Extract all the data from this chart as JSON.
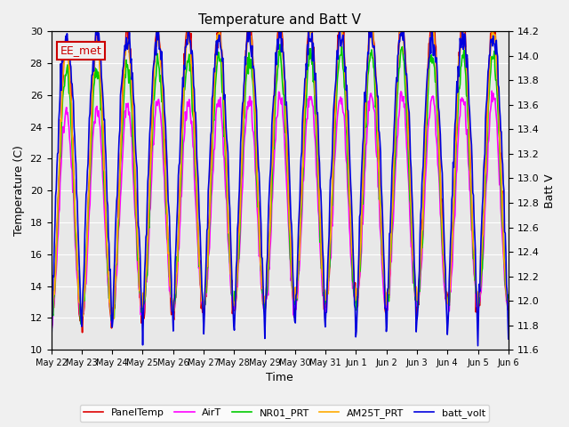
{
  "title": "Temperature and Batt V",
  "xlabel": "Time",
  "ylabel_left": "Temperature (C)",
  "ylabel_right": "Batt V",
  "ylim_left": [
    10,
    30
  ],
  "ylim_right": [
    11.6,
    14.2
  ],
  "annotation": "EE_met",
  "annotation_color": "#cc0000",
  "background_color": "#e8e8e8",
  "x_tick_labels": [
    "May 22",
    "May 23",
    "May 24",
    "May 25",
    "May 26",
    "May 27",
    "May 28",
    "May 29",
    "May 30",
    "May 31",
    "Jun 1",
    "Jun 2",
    "Jun 3",
    "Jun 4",
    "Jun 5",
    "Jun 6"
  ],
  "series_names": [
    "PanelTemp",
    "AirT",
    "NR01_PRT",
    "AM25T_PRT",
    "batt_volt"
  ],
  "series_colors": [
    "#dd0000",
    "#ff00ff",
    "#00cc00",
    "#ffaa00",
    "#0000dd"
  ],
  "series_lw": [
    1.2,
    1.2,
    1.2,
    1.2,
    1.2
  ],
  "n_days": 15,
  "pts_per_day": 48,
  "temp_min": 11.5,
  "temp_max": 29.5,
  "batt_min": 11.7,
  "batt_max": 14.15,
  "yticks_left": [
    10,
    12,
    14,
    16,
    18,
    20,
    22,
    24,
    26,
    28,
    30
  ],
  "yticks_right": [
    11.6,
    11.8,
    12.0,
    12.2,
    12.4,
    12.6,
    12.8,
    13.0,
    13.2,
    13.4,
    13.6,
    13.8,
    14.0,
    14.2
  ],
  "fig_facecolor": "#f0f0f0",
  "ax_facecolor": "#e8e8e8",
  "annotation_box_facecolor": "#f0f0f0"
}
